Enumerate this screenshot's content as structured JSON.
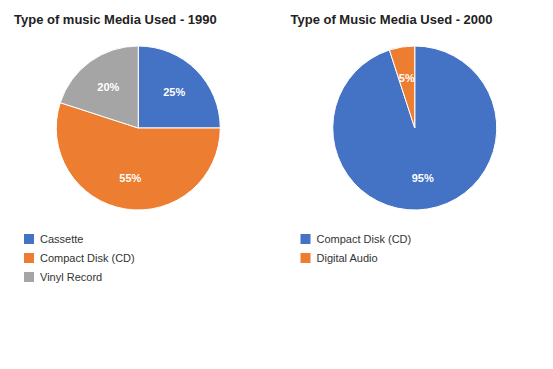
{
  "chart_data": [
    {
      "type": "pie",
      "title": "Type of music Media Used - 1990",
      "categories": [
        "Cassette",
        "Compact Disk (CD)",
        "Vinyl Record"
      ],
      "values": [
        25,
        55,
        20
      ],
      "value_labels": [
        "25%",
        "55%",
        "20%"
      ],
      "colors": [
        "#4472C4",
        "#ED7D31",
        "#A5A5A5"
      ],
      "data_labels": true,
      "legend": "bottom"
    },
    {
      "type": "pie",
      "title": "Type of Music Media Used - 2000",
      "categories": [
        "Compact Disk (CD)",
        "Digital Audio"
      ],
      "values": [
        95,
        5
      ],
      "value_labels": [
        "95%",
        "5%"
      ],
      "colors": [
        "#4472C4",
        "#ED7D31"
      ],
      "data_labels": true,
      "legend": "bottom"
    }
  ]
}
